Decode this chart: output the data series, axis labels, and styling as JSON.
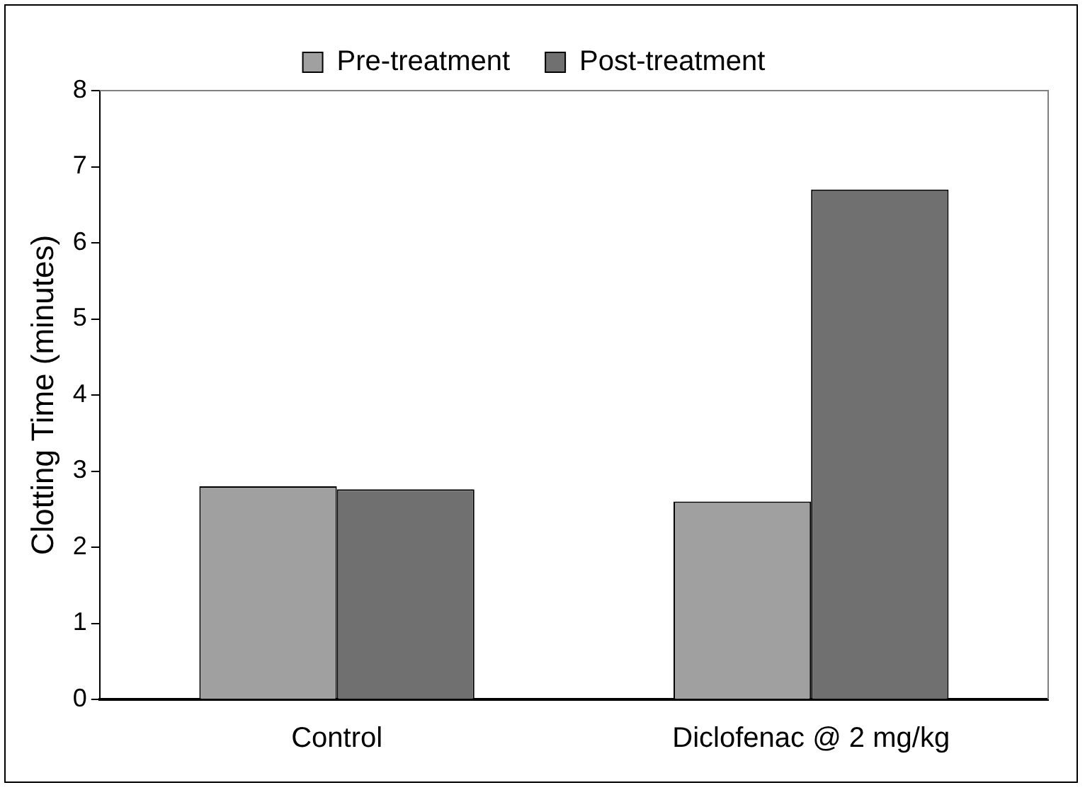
{
  "chart_data": {
    "type": "bar",
    "ylabel": "Clotting Time (minutes)",
    "categories": [
      "Control",
      "Diclofenac @ 2 mg/kg"
    ],
    "series": [
      {
        "name": "Pre-treatment",
        "color": "#a0a0a0",
        "values": [
          2.8,
          2.6
        ]
      },
      {
        "name": "Post-treatment",
        "color": "#707070",
        "values": [
          2.76,
          6.7
        ]
      }
    ],
    "ylim": [
      0,
      8
    ],
    "yticks": [
      0,
      1,
      2,
      3,
      4,
      5,
      6,
      7,
      8
    ],
    "grid": false,
    "legend": "top"
  }
}
